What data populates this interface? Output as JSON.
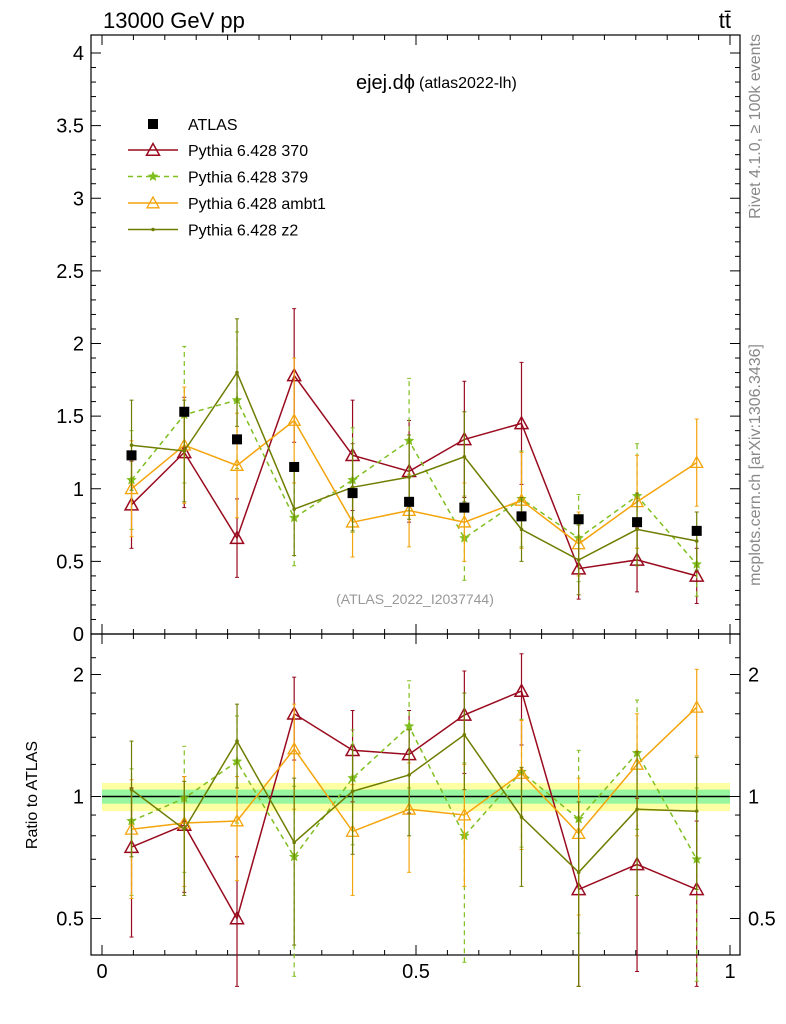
{
  "header": {
    "energy_label": "13000 GeV pp",
    "process_label": "tt̄"
  },
  "side_labels": {
    "rivet": "Rivet 4.1.0, ≥ 100k events",
    "mcplots": "mcplots.cern.ch [arXiv:1306.3436]"
  },
  "chart_data": [
    {
      "type": "line",
      "title": "ejej.dϕ",
      "subtitle": "(atlas2022-lh)",
      "watermark": "(ATLAS_2022_I2037744)",
      "xlabel": "",
      "ylabel": "",
      "xlim": [
        0,
        1
      ],
      "ylim": [
        0,
        4.1
      ],
      "y_ticks": [
        "0",
        "0.5",
        "1",
        "1.5",
        "2",
        "2.5",
        "3",
        "3.5",
        "4"
      ],
      "x": [
        0.047,
        0.131,
        0.215,
        0.306,
        0.399,
        0.489,
        0.577,
        0.668,
        0.759,
        0.852,
        0.947
      ],
      "data": {
        "name": "ATLAS",
        "values": [
          1.23,
          1.53,
          1.34,
          1.15,
          0.97,
          0.91,
          0.87,
          0.81,
          0.79,
          0.77,
          0.71
        ]
      },
      "series": [
        {
          "name": "Pythia 6.428 370",
          "color": "#990a1e",
          "values": [
            0.89,
            1.25,
            0.66,
            1.78,
            1.23,
            1.12,
            1.34,
            1.45,
            0.45,
            0.51,
            0.4
          ],
          "errors": [
            0.3,
            0.38,
            0.27,
            0.46,
            0.38,
            0.35,
            0.4,
            0.42,
            0.21,
            0.22,
            0.19
          ]
        },
        {
          "name": "Pythia 6.428 379",
          "color": "#7fbf1f",
          "values": [
            1.06,
            1.51,
            1.61,
            0.8,
            1.06,
            1.33,
            0.66,
            0.93,
            0.66,
            0.95,
            0.48
          ],
          "errors": [
            0.34,
            0.47,
            0.47,
            0.33,
            0.36,
            0.43,
            0.29,
            0.33,
            0.3,
            0.36,
            0.22
          ]
        },
        {
          "name": "Pythia 6.428 ambt1",
          "color": "#f4a40c",
          "values": [
            1.0,
            1.3,
            1.16,
            1.47,
            0.77,
            0.85,
            0.77,
            0.92,
            0.62,
            0.91,
            1.18
          ],
          "errors": [
            0.33,
            0.4,
            0.36,
            0.43,
            0.24,
            0.25,
            0.27,
            0.33,
            0.22,
            0.32,
            0.3
          ]
        },
        {
          "name": "Pythia 6.428 z2",
          "color": "#6f7d00",
          "values": [
            1.3,
            1.26,
            1.8,
            0.86,
            1.01,
            1.08,
            1.22,
            0.72,
            0.51,
            0.72,
            0.64
          ],
          "errors": [
            0.31,
            0.35,
            0.37,
            0.32,
            0.3,
            0.29,
            0.31,
            0.22,
            0.24,
            0.25,
            0.2
          ]
        }
      ]
    },
    {
      "type": "line",
      "title": "",
      "xlabel": "",
      "ylabel": "Ratio to ATLAS",
      "xlim": [
        0,
        1
      ],
      "ylim": [
        0.34,
        2.25
      ],
      "y_ticks": [
        "0.5",
        "1",
        "2"
      ],
      "x_ticks": [
        "0",
        "0.5",
        "1"
      ],
      "band_green_halfwidth": 0.04,
      "band_yellow_halfwidth": 0.08,
      "x": [
        0.047,
        0.131,
        0.215,
        0.306,
        0.399,
        0.489,
        0.577,
        0.668,
        0.759,
        0.852,
        0.947
      ],
      "series": [
        {
          "name": "Pythia 6.428 370",
          "color": "#990a1e",
          "values": [
            0.75,
            0.85,
            0.5,
            1.6,
            1.3,
            1.27,
            1.59,
            1.82,
            0.59,
            0.68,
            0.59
          ],
          "errors": [
            0.3,
            0.27,
            0.21,
            0.37,
            0.33,
            0.36,
            0.45,
            0.48,
            0.28,
            0.31,
            0.28
          ]
        },
        {
          "name": "Pythia 6.428 379",
          "color": "#7fbf1f",
          "values": [
            0.87,
            0.99,
            1.22,
            0.71,
            1.11,
            1.49,
            0.8,
            1.15,
            0.88,
            1.28,
            0.7
          ],
          "errors": [
            0.3,
            0.34,
            0.36,
            0.35,
            0.35,
            0.44,
            0.41,
            0.4,
            0.42,
            0.45,
            0.35
          ]
        },
        {
          "name": "Pythia 6.428 ambt1",
          "color": "#f4a40c",
          "values": [
            0.83,
            0.86,
            0.87,
            1.31,
            0.82,
            0.93,
            0.9,
            1.14,
            0.81,
            1.2,
            1.66
          ],
          "errors": [
            0.27,
            0.26,
            0.25,
            0.38,
            0.25,
            0.28,
            0.3,
            0.4,
            0.3,
            0.4,
            0.4
          ]
        },
        {
          "name": "Pythia 6.428 z2",
          "color": "#6f7d00",
          "values": [
            1.04,
            0.83,
            1.37,
            0.77,
            1.03,
            1.13,
            1.42,
            0.89,
            0.65,
            0.93,
            0.92
          ],
          "errors": [
            0.33,
            0.26,
            0.32,
            0.34,
            0.31,
            0.33,
            0.38,
            0.29,
            0.32,
            0.36,
            0.33
          ]
        }
      ]
    }
  ]
}
